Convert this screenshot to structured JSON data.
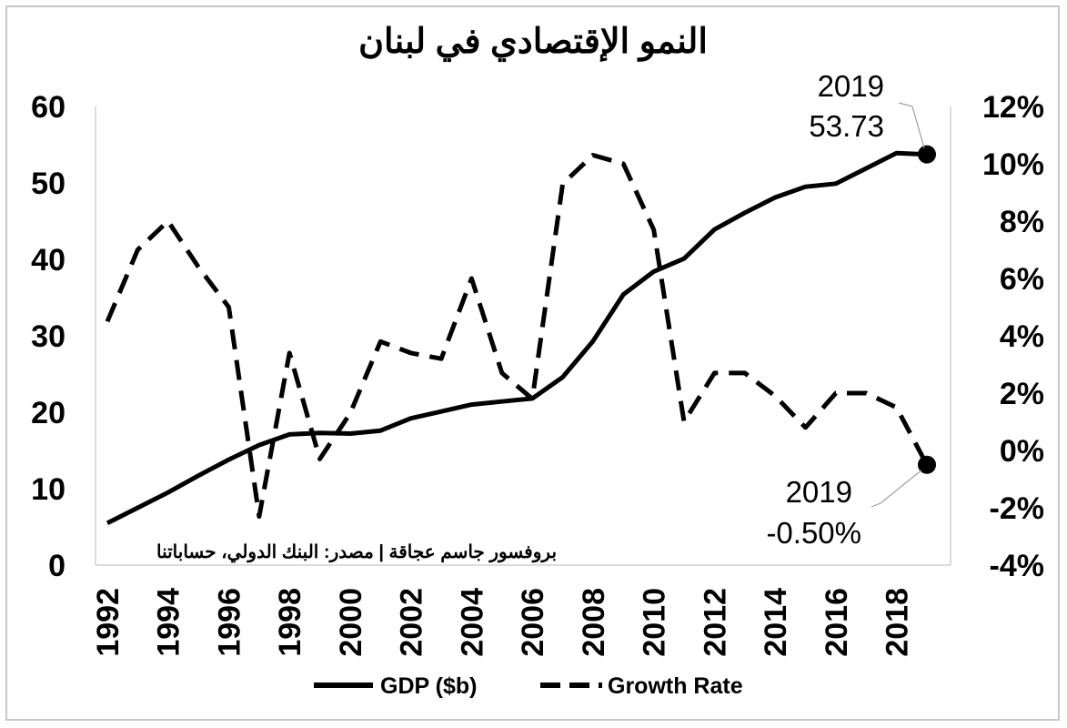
{
  "chart_data": {
    "type": "line",
    "title": "النمو الإقتصادي في لبنان",
    "source_note": "بروفسور جاسم عجاقة | مصدر: البنك الدولي، حساباتنا",
    "x": [
      1992,
      1993,
      1994,
      1995,
      1996,
      1997,
      1998,
      1999,
      2000,
      2001,
      2002,
      2003,
      2004,
      2005,
      2006,
      2007,
      2008,
      2009,
      2010,
      2011,
      2012,
      2013,
      2014,
      2015,
      2016,
      2017,
      2018,
      2019
    ],
    "x_tick_labels": [
      "1992",
      "1994",
      "1996",
      "1998",
      "2000",
      "2002",
      "2004",
      "2006",
      "2008",
      "2010",
      "2012",
      "2014",
      "2016",
      "2018"
    ],
    "y_left_ticks": [
      "0",
      "10",
      "20",
      "30",
      "40",
      "50",
      "60"
    ],
    "y_left_lim": [
      0,
      60
    ],
    "y_right_ticks": [
      "-4%",
      "-2%",
      "0%",
      "2%",
      "4%",
      "6%",
      "8%",
      "10%",
      "12%"
    ],
    "y_right_lim": [
      -4,
      12
    ],
    "grid": false,
    "legend_position": "bottom",
    "series": [
      {
        "name": "GDP ($b)",
        "axis": "left",
        "style": "solid",
        "values": [
          5.5,
          7.5,
          9.5,
          11.7,
          13.8,
          15.7,
          17.1,
          17.3,
          17.2,
          17.6,
          19.2,
          20.1,
          21.0,
          21.4,
          21.8,
          24.6,
          29.3,
          35.4,
          38.4,
          40.1,
          43.9,
          46.1,
          48.1,
          49.5,
          49.9,
          51.9,
          53.9,
          53.73
        ]
      },
      {
        "name": "Growth Rate",
        "axis": "right",
        "style": "dashed",
        "values": [
          4.5,
          7.0,
          8.0,
          6.4,
          5.0,
          -2.3,
          3.4,
          -0.3,
          1.3,
          3.8,
          3.4,
          3.2,
          6.0,
          2.7,
          1.8,
          9.3,
          10.3,
          10.0,
          7.7,
          1.0,
          2.7,
          2.7,
          1.9,
          0.8,
          2.0,
          2.0,
          1.5,
          -0.5
        ]
      }
    ],
    "annotations": [
      {
        "series": "GDP ($b)",
        "year_label": "2019",
        "value_label": "53.73"
      },
      {
        "series": "Growth Rate",
        "year_label": "2019",
        "value_label": "-0.50%"
      }
    ]
  }
}
